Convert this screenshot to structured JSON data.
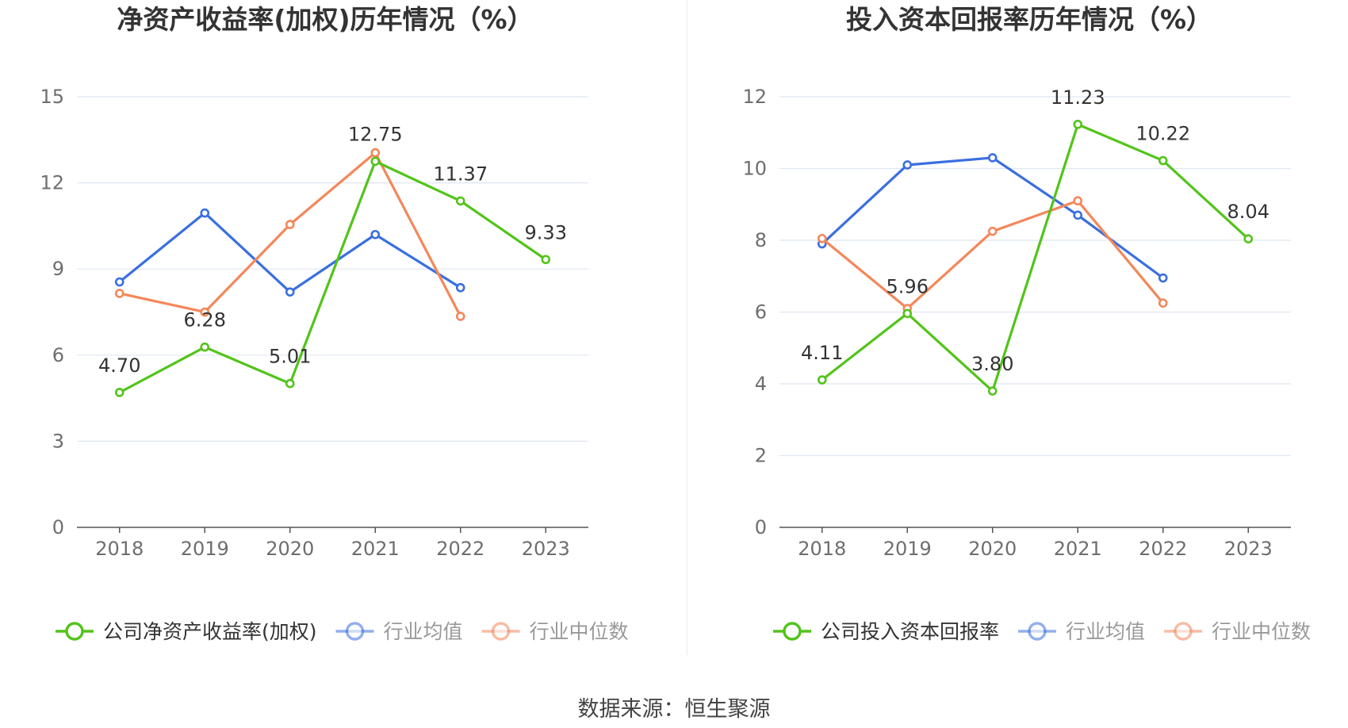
{
  "source": "数据来源：恒生聚源",
  "chart_data": [
    {
      "type": "line",
      "title": "净资产收益率(加权)历年情况（%）",
      "x": [
        "2018",
        "2019",
        "2020",
        "2021",
        "2022",
        "2023"
      ],
      "ylim": [
        0,
        15
      ],
      "yticks": [
        0,
        3,
        6,
        9,
        12,
        15
      ],
      "grid": true,
      "legend_position": "bottom",
      "series": [
        {
          "name": "公司净资产收益率(加权)",
          "color": "#52c41a",
          "values": [
            4.7,
            6.28,
            5.01,
            12.75,
            11.37,
            9.33
          ],
          "labels": [
            "4.70",
            "6.28",
            "5.01",
            "12.75",
            "11.37",
            "9.33"
          ]
        },
        {
          "name": "行业均值",
          "color": "#3a6fe0",
          "values": [
            8.55,
            10.95,
            8.2,
            10.2,
            8.35,
            null
          ]
        },
        {
          "name": "行业中位数",
          "color": "#f4875a",
          "values": [
            8.15,
            7.5,
            10.55,
            13.05,
            7.35,
            null
          ]
        }
      ]
    },
    {
      "type": "line",
      "title": "投入资本回报率历年情况（%）",
      "x": [
        "2018",
        "2019",
        "2020",
        "2021",
        "2022",
        "2023"
      ],
      "ylim": [
        0,
        12
      ],
      "yticks": [
        0,
        2,
        4,
        6,
        8,
        10,
        12
      ],
      "grid": true,
      "legend_position": "bottom",
      "series": [
        {
          "name": "公司投入资本回报率",
          "color": "#52c41a",
          "values": [
            4.11,
            5.96,
            3.8,
            11.23,
            10.22,
            8.04
          ],
          "labels": [
            "4.11",
            "5.96",
            "3.80",
            "11.23",
            "10.22",
            "8.04"
          ]
        },
        {
          "name": "行业均值",
          "color": "#3a6fe0",
          "values": [
            7.9,
            10.1,
            10.3,
            8.7,
            6.95,
            null
          ]
        },
        {
          "name": "行业中位数",
          "color": "#f4875a",
          "values": [
            8.05,
            6.1,
            8.25,
            9.1,
            6.25,
            null
          ]
        }
      ]
    }
  ]
}
